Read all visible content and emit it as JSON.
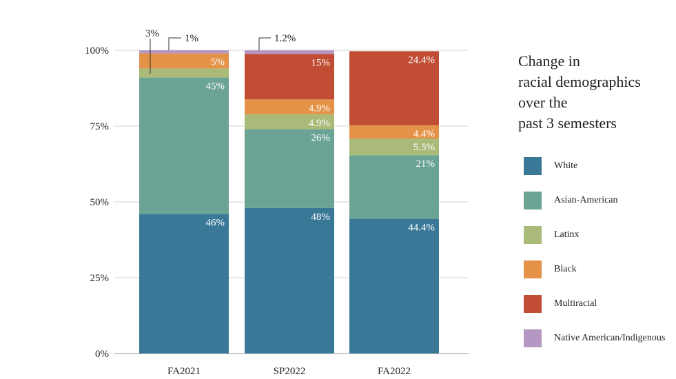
{
  "chart_data": {
    "type": "bar",
    "stacked": true,
    "categories": [
      "FA2021",
      "SP2022",
      "FA2022"
    ],
    "series": [
      {
        "name": "White",
        "color": "#3a7898",
        "values": [
          46,
          48,
          44.4
        ],
        "labels": [
          "46%",
          "48%",
          "44.4%"
        ]
      },
      {
        "name": "Asian-American",
        "color": "#6ba394",
        "values": [
          45,
          26,
          21
        ],
        "labels": [
          "45%",
          "26%",
          "21%"
        ]
      },
      {
        "name": "Latinx",
        "color": "#a9ba79",
        "values": [
          3,
          4.9,
          5.5
        ],
        "labels": [
          "3%",
          "4.9%",
          "5.5%"
        ]
      },
      {
        "name": "Black",
        "color": "#e39247",
        "values": [
          5,
          4.9,
          4.4
        ],
        "labels": [
          "5%",
          "4.9%",
          "4.4%"
        ]
      },
      {
        "name": "Multiracial",
        "color": "#c14d34",
        "values": [
          0,
          15,
          24.4
        ],
        "labels": [
          "",
          "15%",
          "24.4%"
        ]
      },
      {
        "name": "Native American/Indigenous",
        "color": "#b597c3",
        "values": [
          1,
          1.2,
          0
        ],
        "labels": [
          "1%",
          "1.2%",
          ""
        ]
      }
    ],
    "yticks": [
      "0%",
      "25%",
      "50%",
      "75%",
      "100%"
    ],
    "ylim": [
      0,
      100
    ],
    "callouts": [
      {
        "category": "FA2021",
        "series": "Latinx",
        "text": "3%"
      },
      {
        "category": "FA2021",
        "series": "Native American/Indigenous",
        "text": "1%"
      },
      {
        "category": "SP2022",
        "series": "Native American/Indigenous",
        "text": "1.2%"
      }
    ],
    "title": "Change in\nracial demographics\nover the\npast 3 semesters",
    "legend_position": "right",
    "grid": true
  }
}
